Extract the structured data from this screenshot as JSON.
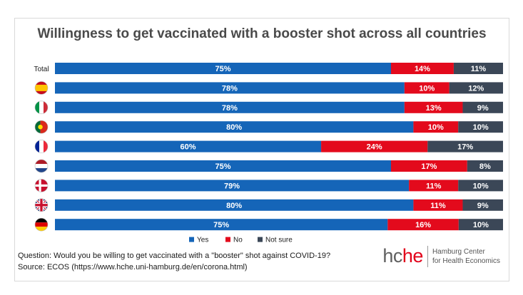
{
  "chart_data": {
    "type": "bar",
    "orientation": "horizontal",
    "stacked": true,
    "title": "Willingness to get vaccinated with a booster shot across all countries",
    "categories": [
      "Total",
      "Spain",
      "Italy",
      "Portugal",
      "France",
      "Netherlands",
      "Denmark",
      "United Kingdom",
      "Germany"
    ],
    "category_labels": [
      "Total",
      "",
      "",
      "",
      "",
      "",
      "",
      "",
      ""
    ],
    "category_icons": [
      "",
      "flag-spain",
      "flag-italy",
      "flag-portugal",
      "flag-france",
      "flag-netherlands",
      "flag-denmark",
      "flag-uk",
      "flag-germany"
    ],
    "series": [
      {
        "name": "Yes",
        "color": "#1565b8",
        "values": [
          75,
          78,
          78,
          80,
          60,
          75,
          79,
          80,
          75
        ]
      },
      {
        "name": "No",
        "color": "#e30a1c",
        "values": [
          14,
          10,
          13,
          10,
          24,
          17,
          11,
          11,
          16
        ]
      },
      {
        "name": "Not sure",
        "color": "#3b4757",
        "values": [
          11,
          12,
          9,
          10,
          17,
          8,
          10,
          9,
          10
        ]
      }
    ],
    "value_suffix": "%",
    "legend_position": "bottom",
    "grid": false
  },
  "footer": {
    "question": "Question: Would you be willing to get vaccinated with a \"booster\" shot against COVID-19?",
    "source": "Source: ECOS (https://www.hche.uni-hamburg.de/en/corona.html)"
  },
  "logo": {
    "word_main": "hc",
    "word_accent": "he",
    "line1": "Hamburg Center",
    "line2": "for Health Economics"
  }
}
